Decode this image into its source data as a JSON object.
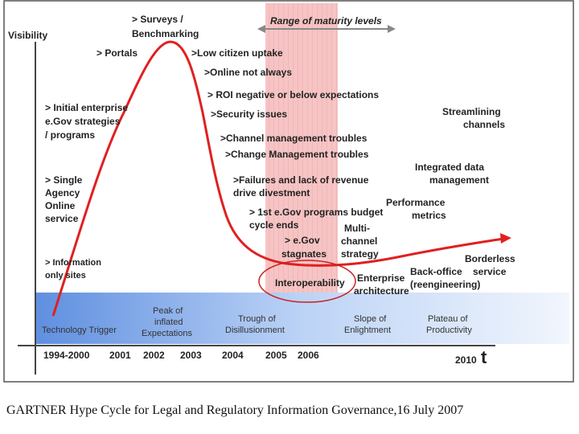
{
  "diagram": {
    "axis": {
      "y_label": "Visibility",
      "x_label": "t"
    },
    "range_label": "Range of maturity levels",
    "labels": {
      "surveys": [
        "> Surveys /",
        "Benchmarking"
      ],
      "portals": "> Portals",
      "low_uptake": ">Low citizen uptake",
      "online_not_always": ">Online not always",
      "roi_negative": "> ROI negative or below expectations",
      "security": ">Security issues",
      "channel_mgmt": ">Channel management troubles",
      "change_mgmt": ">Change Management troubles",
      "failures": [
        ">Failures and lack of revenue",
        "drive divestment"
      ],
      "first_egov": [
        "> 1st e.Gov programs budget",
        "cycle ends"
      ],
      "egov_stagnates": [
        "> e.Gov",
        "stagnates"
      ],
      "multichannel": [
        "Multi-",
        "channel",
        "strategy"
      ],
      "interoperability": "Interoperability",
      "enterprise_arch": [
        "Enterprise",
        "architecture"
      ],
      "backoffice": [
        "Back-office",
        "(reengineering)"
      ],
      "borderless": [
        "Borderless",
        "service"
      ],
      "performance": [
        "Performance",
        "metrics"
      ],
      "integrated": [
        "Integrated data",
        "management"
      ],
      "streamlining": [
        "Streamlining",
        "channels"
      ],
      "initial_enterprise": [
        "> Initial enterprise",
        "e.Gov strategies",
        "/ programs"
      ],
      "single_agency": [
        "> Single",
        "Agency",
        "Online",
        "service"
      ],
      "information_only": [
        "> Information",
        "only sites"
      ]
    },
    "phases": [
      [
        "Technology Trigger"
      ],
      [
        "Peak of",
        "inflated",
        "Expectations"
      ],
      [
        "Trough of",
        "Disillusionment"
      ],
      [
        "Slope of",
        "Enlightment"
      ],
      [
        "Plateau of",
        "Productivity"
      ]
    ],
    "years": [
      "1994-2000",
      "2001",
      "2002",
      "2003",
      "2004",
      "2005",
      "2006",
      "2010"
    ]
  },
  "caption": "GARTNER Hype Cycle for Legal and Regulatory Information Governance,16 July 2007",
  "colors": {
    "curve": "#e02020",
    "band": "#f3b2b2",
    "phase_band": "#8cb4ee"
  }
}
